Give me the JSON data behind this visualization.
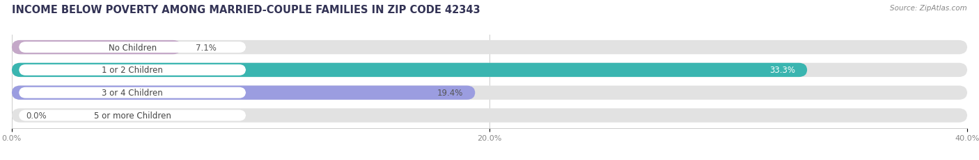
{
  "title": "INCOME BELOW POVERTY AMONG MARRIED-COUPLE FAMILIES IN ZIP CODE 42343",
  "source": "Source: ZipAtlas.com",
  "categories": [
    "No Children",
    "1 or 2 Children",
    "3 or 4 Children",
    "5 or more Children"
  ],
  "values": [
    7.1,
    33.3,
    19.4,
    0.0
  ],
  "bar_colors": [
    "#c4a8c8",
    "#3ab5b0",
    "#9b9de0",
    "#f7a8c0"
  ],
  "bg_color": "#f0f0f0",
  "bar_bg_color": "#e2e2e2",
  "xlim": [
    0,
    42
  ],
  "xlim_display": 40,
  "xticks": [
    0.0,
    20.0,
    40.0
  ],
  "xtick_labels": [
    "0.0%",
    "20.0%",
    "40.0%"
  ],
  "title_fontsize": 10.5,
  "label_fontsize": 8.5,
  "value_fontsize": 8.5,
  "bar_height": 0.62,
  "figsize": [
    14.06,
    2.32
  ],
  "dpi": 100
}
